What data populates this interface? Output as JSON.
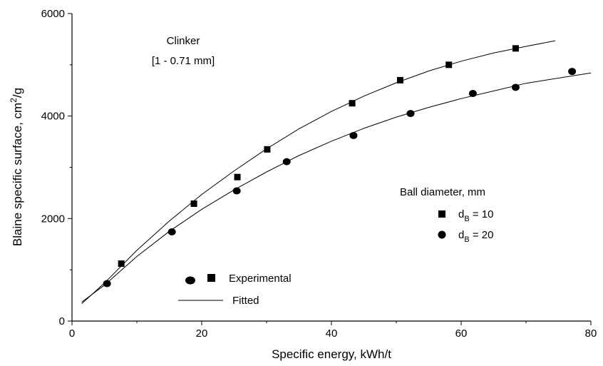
{
  "chart_data": {
    "type": "scatter",
    "title": "",
    "xlabel": "Specific energy, kWh/t",
    "ylabel": {
      "main": "Blaine specific surface, cm",
      "sup": "2",
      "tail": "/g"
    },
    "xlim": [
      0,
      80
    ],
    "ylim": [
      0,
      6000
    ],
    "x_ticks": [
      0,
      20,
      40,
      60,
      80
    ],
    "y_ticks": [
      0,
      2000,
      4000,
      6000
    ],
    "x_tick_labels": [
      "0",
      "20",
      "40",
      "60",
      "80"
    ],
    "y_tick_labels": [
      "0",
      "2000",
      "4000",
      "6000"
    ],
    "grid": false,
    "annotations": {
      "material": "Clinker",
      "size_range": "[1 - 0.71 mm]"
    },
    "legend_series": {
      "title": "Ball diameter, mm",
      "position": "right",
      "items": [
        {
          "marker": "square",
          "prefix": "d",
          "sub": "B",
          "suffix": " = 10"
        },
        {
          "marker": "circle",
          "prefix": "d",
          "sub": "B",
          "suffix": " = 20"
        }
      ]
    },
    "legend_type": {
      "position": "bottom-left",
      "experimental": "Experimental",
      "fitted": "Fitted"
    },
    "series": [
      {
        "marker": "square",
        "points": [
          [
            7.6,
            1120
          ],
          [
            18.8,
            2290
          ],
          [
            25.5,
            2810
          ],
          [
            30.1,
            3350
          ],
          [
            43.2,
            4250
          ],
          [
            50.6,
            4700
          ],
          [
            58.1,
            5000
          ],
          [
            68.4,
            5320
          ]
        ],
        "fit": [
          [
            1.5,
            340
          ],
          [
            5,
            740
          ],
          [
            10,
            1380
          ],
          [
            15,
            1950
          ],
          [
            20,
            2470
          ],
          [
            25,
            2930
          ],
          [
            30,
            3360
          ],
          [
            35,
            3750
          ],
          [
            40,
            4090
          ],
          [
            45,
            4390
          ],
          [
            50,
            4650
          ],
          [
            55,
            4880
          ],
          [
            60,
            5070
          ],
          [
            65,
            5230
          ],
          [
            70,
            5360
          ],
          [
            74.5,
            5470
          ]
        ]
      },
      {
        "marker": "circle",
        "points": [
          [
            5.4,
            730
          ],
          [
            15.4,
            1740
          ],
          [
            25.4,
            2540
          ],
          [
            33.1,
            3110
          ],
          [
            43.4,
            3620
          ],
          [
            52.2,
            4050
          ],
          [
            61.8,
            4440
          ],
          [
            68.4,
            4560
          ],
          [
            77.1,
            4870
          ]
        ],
        "fit": [
          [
            1.5,
            370
          ],
          [
            5,
            700
          ],
          [
            10,
            1260
          ],
          [
            15,
            1750
          ],
          [
            20,
            2180
          ],
          [
            25,
            2560
          ],
          [
            30,
            2910
          ],
          [
            35,
            3230
          ],
          [
            40,
            3510
          ],
          [
            45,
            3760
          ],
          [
            50,
            3980
          ],
          [
            55,
            4170
          ],
          [
            60,
            4340
          ],
          [
            65,
            4490
          ],
          [
            70,
            4640
          ],
          [
            80,
            4840
          ]
        ]
      }
    ]
  }
}
